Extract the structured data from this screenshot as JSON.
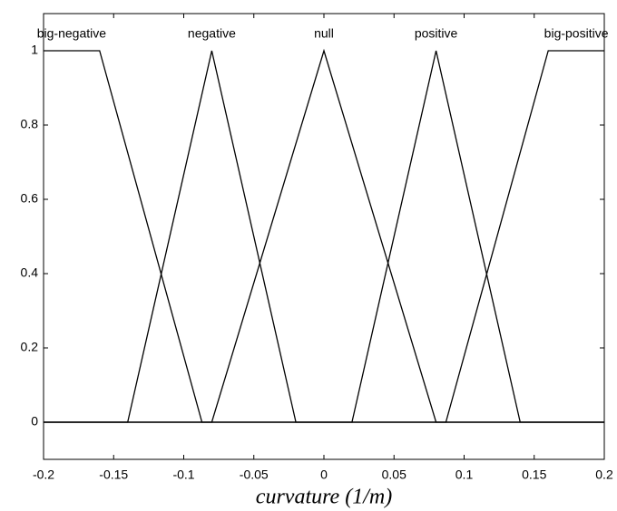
{
  "chart_data": {
    "type": "line",
    "x_label": "curvature (1/m)",
    "series": [
      {
        "name": "big-negative",
        "color": "#000000",
        "x": [
          -0.2,
          -0.16,
          -0.087,
          0.2
        ],
        "values": [
          1,
          1,
          0,
          0
        ]
      },
      {
        "name": "negative",
        "color": "#000000",
        "x": [
          -0.2,
          -0.14,
          -0.08,
          -0.02,
          0.2
        ],
        "values": [
          0,
          0,
          1,
          0,
          0
        ]
      },
      {
        "name": "null",
        "color": "#000000",
        "x": [
          -0.2,
          -0.08,
          0,
          0.08,
          0.2
        ],
        "values": [
          0,
          0,
          1,
          0,
          0
        ]
      },
      {
        "name": "positive",
        "color": "#000000",
        "x": [
          -0.2,
          0.02,
          0.08,
          0.14,
          0.2
        ],
        "values": [
          0,
          0,
          1,
          0,
          0
        ]
      },
      {
        "name": "big-positive",
        "color": "#000000",
        "x": [
          -0.2,
          0.087,
          0.16,
          0.2
        ],
        "values": [
          0,
          0,
          1,
          1
        ]
      }
    ],
    "xlim": [
      -0.2,
      0.2
    ],
    "xticks": [
      -0.2,
      -0.15,
      -0.1,
      -0.05,
      0,
      0.05,
      0.1,
      0.15,
      0.2
    ],
    "ylim": [
      -0.1,
      1.1
    ],
    "yticks": [
      0,
      0.2,
      0.4,
      0.6,
      0.8,
      1
    ],
    "grid": false
  }
}
